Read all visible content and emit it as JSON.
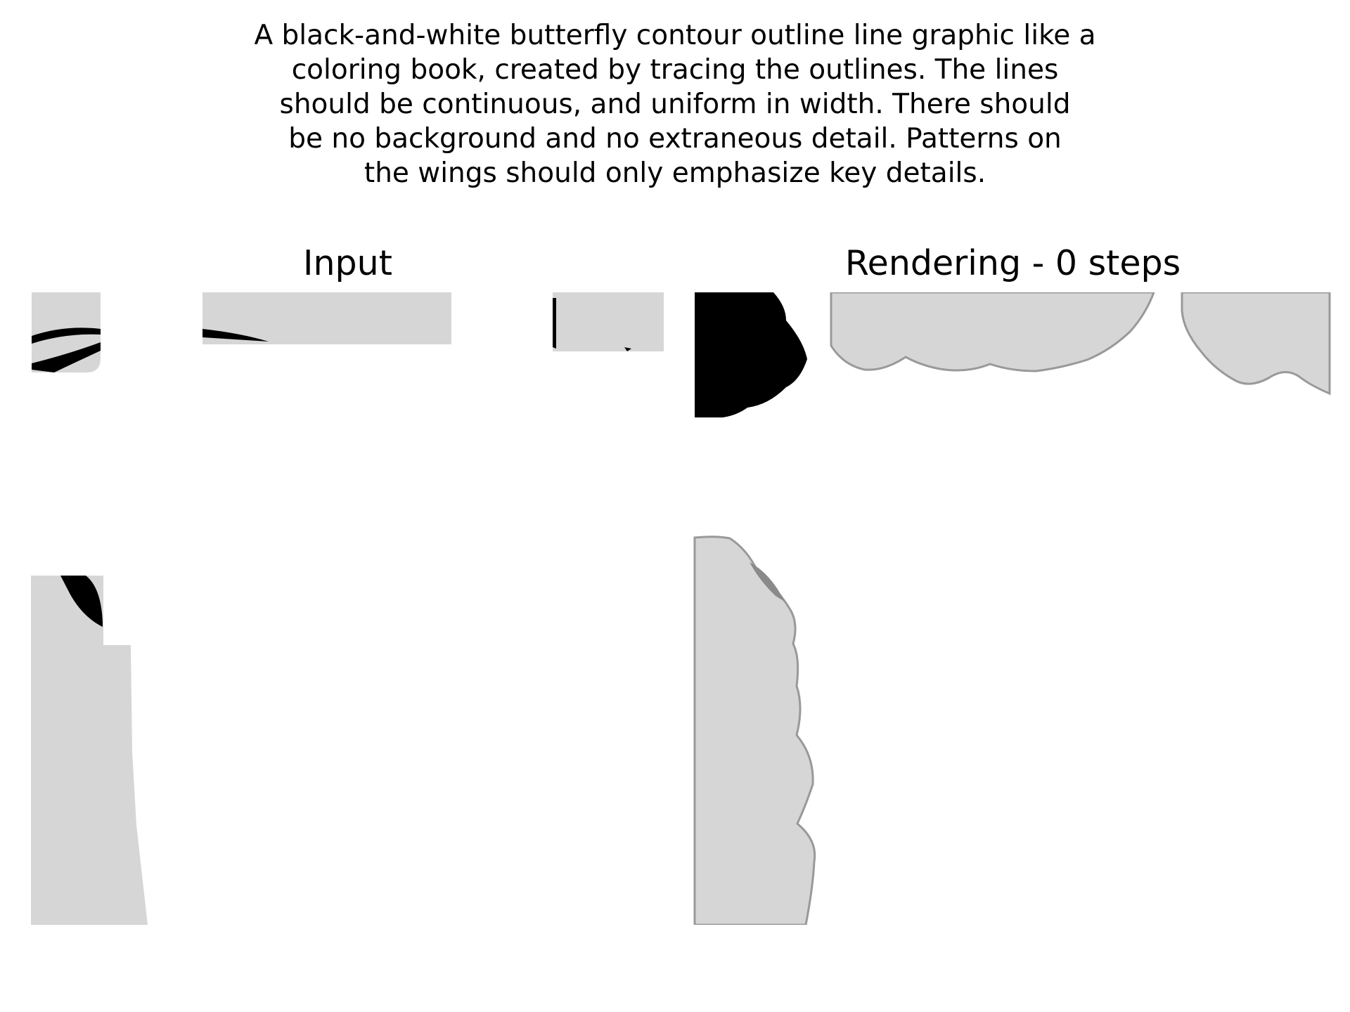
{
  "caption": "A black-and-white butterfly contour outline line graphic like a\ncoloring book, created by tracing the outlines. The lines\nshould be continuous, and uniform in width. There should\nbe no background and no extraneous detail. Patterns on\nthe wings should only emphasize key details.",
  "panels": [
    {
      "title": "Input"
    },
    {
      "title": "Rendering - 0 steps"
    }
  ],
  "colors": {
    "background": "#ffffff",
    "fill_gray": "#d6d6d6",
    "outline_gray": "#999999",
    "shadow_gray": "#8a8a8a",
    "ink": "#000000"
  }
}
